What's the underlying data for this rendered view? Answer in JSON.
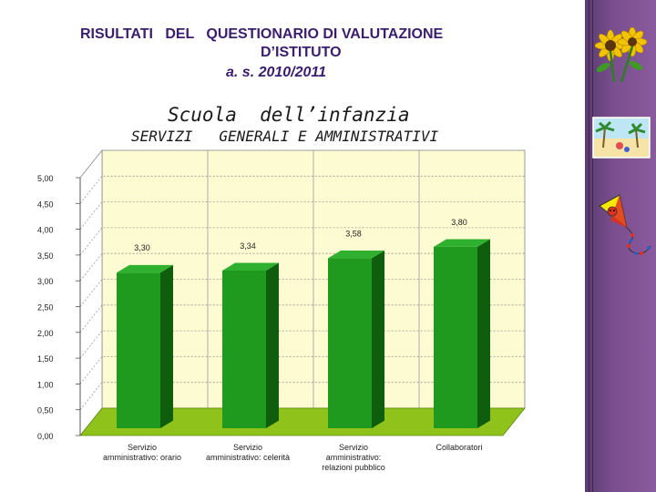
{
  "header": {
    "line1": "RISULTATI   DEL   QUESTIONARIO DI VALUTAZIONE",
    "line2": "D’ISTITUTO",
    "line3": "a.  s. 2010/2011",
    "subtitle1": "Scuola  dell’infanzia",
    "subtitle2": "SERVIZI   GENERALI E AMMINISTRATIVI"
  },
  "colors": {
    "title": "#3a1d6e",
    "bar": "#1f9a1f",
    "bar_dark": "#0e5e0e",
    "floor": "#8fc21a",
    "wall": "#fdfbd2",
    "sidebar": "#7a4f8e"
  },
  "decorations": [
    "sunflower-clipart",
    "beach-clipart",
    "kite-clipart"
  ],
  "chart_data": {
    "type": "bar",
    "categories": [
      [
        "Servizio",
        "amministrativo: orario"
      ],
      [
        "Servizio",
        "amministrativo: celerità"
      ],
      [
        "Servizio",
        "amministrativo:",
        "relazioni pubblico"
      ],
      [
        "Collaboratori"
      ]
    ],
    "values": [
      3.3,
      3.34,
      3.58,
      3.8
    ],
    "value_labels": [
      "3,30",
      "3,34",
      "3,58",
      "3,80"
    ],
    "ylim": [
      0,
      5
    ],
    "yticks": [
      "0,00",
      "0,50",
      "1,00",
      "1,50",
      "2,00",
      "2,50",
      "3,00",
      "3,50",
      "4,00",
      "4,50",
      "5,00"
    ],
    "grid": true,
    "legend": "none"
  }
}
